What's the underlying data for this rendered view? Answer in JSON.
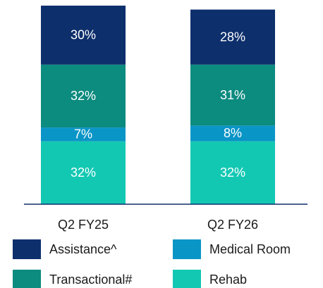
{
  "chart_data": {
    "type": "stacked_bar",
    "categories": [
      "Q2 FY25",
      "Q2 FY26"
    ],
    "series": [
      {
        "name": "Rehab",
        "color": "#13c8b3",
        "values": [
          32,
          32
        ],
        "value_labels": [
          "32%",
          "32%"
        ]
      },
      {
        "name": "Medical Room",
        "color": "#0a95c7",
        "values": [
          7,
          8
        ],
        "value_labels": [
          "7%",
          "8%"
        ]
      },
      {
        "name": "Transactional#",
        "color": "#0c8b7f",
        "values": [
          32,
          31
        ],
        "value_labels": [
          "32%",
          "31%"
        ]
      },
      {
        "name": "Assistance^",
        "color": "#0d2f6c",
        "values": [
          30,
          28
        ],
        "value_labels": [
          "30%",
          "28%"
        ]
      }
    ]
  }
}
